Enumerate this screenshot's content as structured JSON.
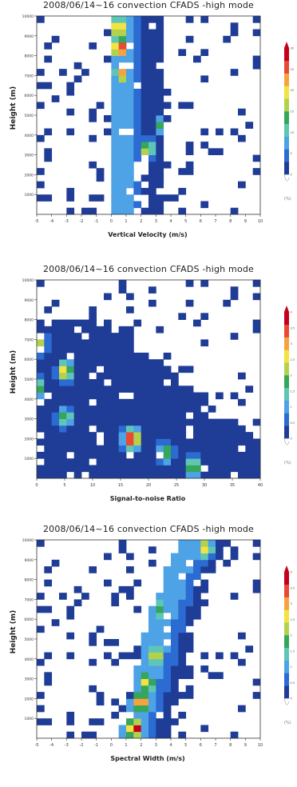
{
  "chart_data": [
    {
      "type": "heatmap",
      "title": "2008/06/14~16 convection CFADS -high mode",
      "xlabel": "Vertical Velocity (m/s)",
      "ylabel": "Height (m)",
      "xlim": [
        -5,
        10
      ],
      "ylim": [
        0,
        10000
      ],
      "x_ticks": [
        "-5",
        "-4",
        "-3",
        "-2",
        "-1",
        "0",
        "1",
        "2",
        "3",
        "4",
        "5",
        "6",
        "7",
        "8",
        "9",
        "10"
      ],
      "y_ticks": [
        "1000",
        "2000",
        "3000",
        "4000",
        "5000",
        "6000",
        "7000",
        "8000",
        "9000",
        "10000"
      ],
      "colorbar_ticks": [
        "0",
        "5",
        "10",
        "15",
        "20",
        "25",
        "30"
      ],
      "colorbar_unit": "(%)",
      "ridge": [
        [
          10000,
          0.3
        ],
        [
          8500,
          0.5
        ],
        [
          7000,
          0.8
        ],
        [
          5500,
          1.8
        ],
        [
          4000,
          3.0
        ],
        [
          2500,
          4.2
        ],
        [
          1200,
          5.0
        ]
      ],
      "ridge_width": 1.7,
      "left_offset": -0.3,
      "right_offset": 3.2,
      "peaks": [
        [
          0.6,
          8400,
          26
        ],
        [
          0.5,
          9400,
          22
        ],
        [
          0.7,
          7100,
          20
        ],
        [
          2.4,
          3300,
          16
        ],
        [
          3.5,
          4500,
          13
        ],
        [
          4.1,
          2100,
          12
        ],
        [
          5.6,
          1400,
          11
        ]
      ]
    },
    {
      "type": "heatmap",
      "title": "2008/06/14~16 convection CFADS -high mode",
      "xlabel": "Signal-to-noise Ratio",
      "ylabel": "Height (m)",
      "xlim": [
        0,
        40
      ],
      "ylim": [
        0,
        10000
      ],
      "x_ticks": [
        "0",
        "5",
        "10",
        "15",
        "20",
        "25",
        "30",
        "35",
        "40"
      ],
      "y_ticks": [
        "1000",
        "2000",
        "3000",
        "4000",
        "5000",
        "6000",
        "7000",
        "8000",
        "9000",
        "10000"
      ],
      "colorbar_ticks": [
        "0",
        "0.5",
        "1",
        "1.5",
        "2",
        "2.5",
        "3",
        "3.5",
        "4"
      ],
      "colorbar_unit": "(%)",
      "top_edge": [
        [
          0,
          8400
        ],
        [
          10,
          8200
        ],
        [
          20,
          6400
        ],
        [
          30,
          4000
        ],
        [
          40,
          2200
        ]
      ],
      "peaks": [
        [
          17,
          2000,
          4.0
        ],
        [
          5,
          5400,
          3.0
        ],
        [
          0,
          4600,
          2.4
        ],
        [
          0.5,
          6800,
          2.2
        ],
        [
          5,
          3100,
          2.0
        ],
        [
          28,
          600,
          2.4
        ],
        [
          23,
          1300,
          2.2
        ]
      ]
    },
    {
      "type": "heatmap",
      "title": "2008/06/14~16 convection CFADS -high mode",
      "xlabel": "Spectral Width (m/s)",
      "ylabel": "Height (m)",
      "xlim": [
        -5,
        10
      ],
      "ylim": [
        0,
        10000
      ],
      "x_ticks": [
        "-5",
        "-4",
        "-3",
        "-2",
        "-1",
        "0",
        "1",
        "2",
        "3",
        "4",
        "5",
        "6",
        "7",
        "8",
        "9",
        "10"
      ],
      "y_ticks": [
        "1000",
        "2000",
        "3000",
        "4000",
        "5000",
        "6000",
        "7000",
        "8000",
        "9000",
        "10000"
      ],
      "colorbar_ticks": [
        "0",
        "0.5",
        "1",
        "1.5",
        "2",
        "2.5",
        "3",
        "3.5",
        "4"
      ],
      "colorbar_unit": "(%)",
      "ridge": [
        [
          500,
          1.5
        ],
        [
          2000,
          2.0
        ],
        [
          4000,
          2.7
        ],
        [
          6000,
          3.3
        ],
        [
          8000,
          4.2
        ],
        [
          10000,
          5.5
        ]
      ],
      "ridge_width": 1.6,
      "left_offset": -0.8,
      "right_offset": 2.4,
      "peaks": [
        [
          1.6,
          500,
          4.0
        ],
        [
          2.0,
          1800,
          3.5
        ],
        [
          2.4,
          2800,
          3.0
        ],
        [
          3.0,
          4200,
          2.6
        ],
        [
          6.3,
          9600,
          2.8
        ],
        [
          3.3,
          6500,
          2.0
        ]
      ]
    }
  ]
}
